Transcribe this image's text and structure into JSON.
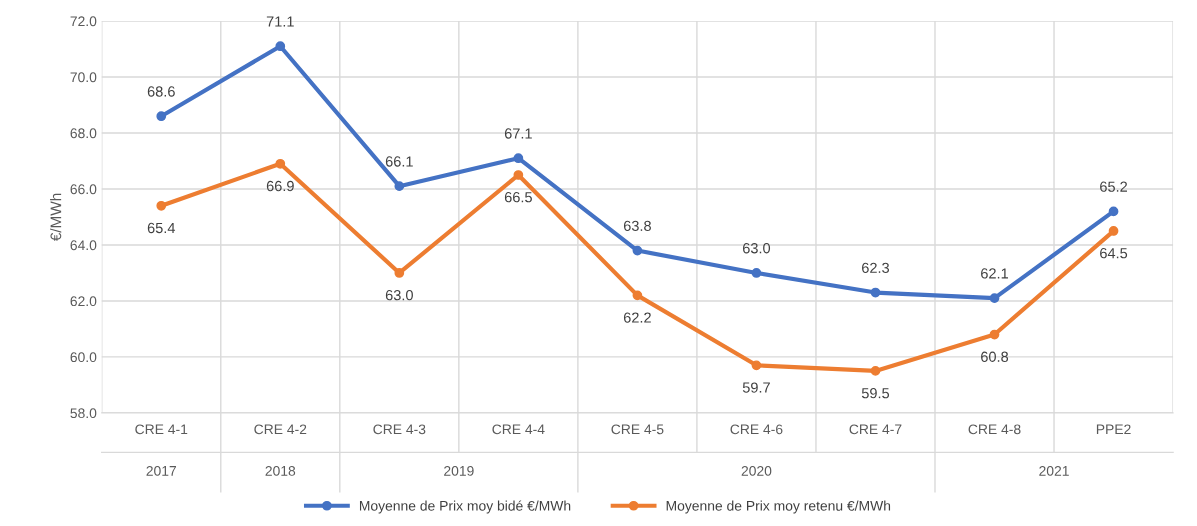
{
  "chart_data": {
    "type": "line",
    "ylabel": "€/MWh",
    "categories": [
      "CRE 4-1",
      "CRE 4-2",
      "CRE 4-3",
      "CRE 4-4",
      "CRE 4-5",
      "CRE 4-6",
      "CRE 4-7",
      "CRE 4-8",
      "PPE2"
    ],
    "series": [
      {
        "name": "Moyenne de Prix moy bidé €/MWh",
        "color": "#4472c4",
        "values": [
          68.6,
          71.1,
          66.1,
          67.1,
          63.8,
          63.0,
          62.3,
          62.1,
          65.2
        ],
        "value_labels": [
          "68.6",
          "71.1",
          "66.1",
          "67.1",
          "63.8",
          "63.0",
          "62.3",
          "62.1",
          "65.2"
        ]
      },
      {
        "name": "Moyenne de Prix moy retenu €/MWh",
        "color": "#ed7d31",
        "values": [
          65.4,
          66.9,
          63.0,
          66.5,
          62.2,
          59.7,
          59.5,
          60.8,
          64.5
        ],
        "value_labels": [
          "65.4",
          "66.9",
          "63.0",
          "66.5",
          "62.2",
          "59.7",
          "59.5",
          "60.8",
          "64.5"
        ]
      }
    ],
    "ylim": [
      58,
      72
    ],
    "yticks": [
      {
        "value": 58,
        "label": "58.0"
      },
      {
        "value": 60,
        "label": "60.0"
      },
      {
        "value": 62,
        "label": "62.0"
      },
      {
        "value": 64,
        "label": "64.0"
      },
      {
        "value": 66,
        "label": "66.0"
      },
      {
        "value": 68,
        "label": "68.0"
      },
      {
        "value": 70,
        "label": "70.0"
      },
      {
        "value": 72,
        "label": "72.0"
      }
    ],
    "annotations": [
      "2017",
      "2018",
      "2019",
      "2020",
      "2021"
    ],
    "grid": true,
    "marker": "circle",
    "line_style": "solid",
    "legend": "bottom"
  }
}
